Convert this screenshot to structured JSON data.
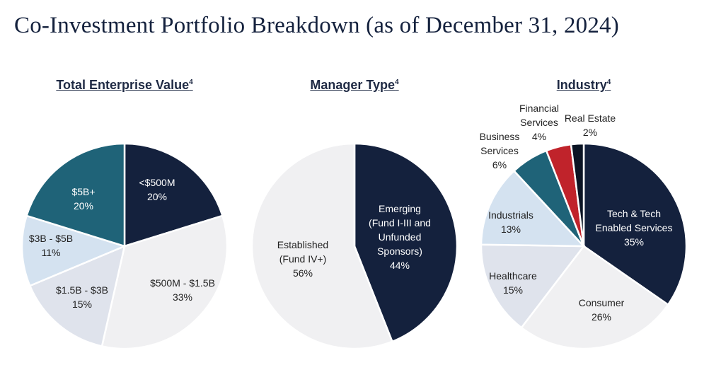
{
  "title": "Co-Investment Portfolio Breakdown (as of December 31, 2024)",
  "colors": {
    "navy": "#14213d",
    "teal": "#1f6378",
    "light_blue": "#d4e2f0",
    "light_gray": "#dfe3ec",
    "off_white": "#f0f0f2",
    "red": "#c0232b",
    "near_black": "#0b1424",
    "outline": "#ffffff"
  },
  "chart_data": [
    {
      "type": "pie",
      "title": "Total Enterprise Value",
      "title_sup": "4",
      "slices": [
        {
          "lines": [
            "<$500M",
            "20%"
          ],
          "value": 20,
          "color": "#14213d",
          "text_color": "#ffffff"
        },
        {
          "lines": [
            "$500M - $1.5B",
            "33%"
          ],
          "value": 33,
          "color": "#f0f0f2",
          "text_color": "#222222"
        },
        {
          "lines": [
            "$1.5B - $3B",
            "15%"
          ],
          "value": 15,
          "color": "#dfe3ec",
          "text_color": "#222222"
        },
        {
          "lines": [
            "$3B - $5B",
            "11%"
          ],
          "value": 11,
          "color": "#d4e2f0",
          "text_color": "#222222"
        },
        {
          "lines": [
            "$5B+",
            "20%"
          ],
          "value": 20,
          "color": "#1f6378",
          "text_color": "#ffffff"
        }
      ]
    },
    {
      "type": "pie",
      "title": "Manager Type",
      "title_sup": "4",
      "slices": [
        {
          "lines": [
            "Emerging",
            "(Fund I-III and",
            "Unfunded",
            "Sponsors)",
            "44%"
          ],
          "value": 44,
          "color": "#14213d",
          "text_color": "#ffffff"
        },
        {
          "lines": [
            "Established",
            "(Fund IV+)",
            "56%"
          ],
          "value": 56,
          "color": "#f0f0f2",
          "text_color": "#222222"
        }
      ]
    },
    {
      "type": "pie",
      "title": "Industry",
      "title_sup": "4",
      "slices": [
        {
          "lines": [
            "Tech & Tech",
            "Enabled Services",
            "35%"
          ],
          "value": 35,
          "color": "#14213d",
          "text_color": "#ffffff",
          "label_outside": false
        },
        {
          "lines": [
            "Consumer",
            "26%"
          ],
          "value": 26,
          "color": "#f0f0f2",
          "text_color": "#222222",
          "label_outside": false
        },
        {
          "lines": [
            "Healthcare",
            "15%"
          ],
          "value": 15,
          "color": "#dfe3ec",
          "text_color": "#222222",
          "label_outside": false
        },
        {
          "lines": [
            "Industrials",
            "13%"
          ],
          "value": 13,
          "color": "#d4e2f0",
          "text_color": "#222222",
          "label_outside": false
        },
        {
          "lines": [
            "Business",
            "Services",
            "6%"
          ],
          "value": 6,
          "color": "#1f6378",
          "text_color": "#222222",
          "label_outside": true
        },
        {
          "lines": [
            "Financial",
            "Services",
            "4%"
          ],
          "value": 4,
          "color": "#c0232b",
          "text_color": "#222222",
          "label_outside": true
        },
        {
          "lines": [
            "Real Estate",
            "2%"
          ],
          "value": 2,
          "color": "#0b1424",
          "text_color": "#222222",
          "label_outside": true
        }
      ]
    }
  ]
}
